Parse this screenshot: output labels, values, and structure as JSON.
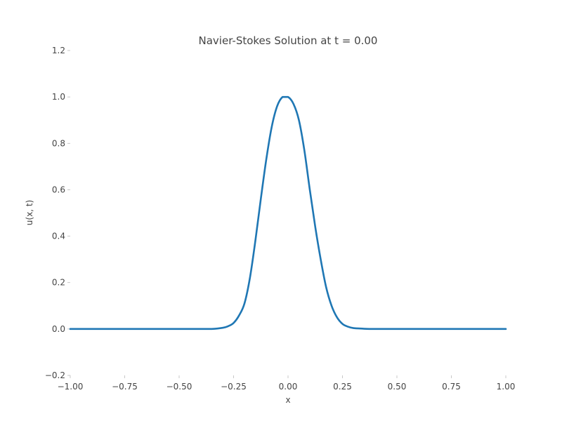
{
  "chart_data": {
    "type": "line",
    "title": "Navier-Stokes Solution at t = 0.00",
    "xlabel": "x",
    "ylabel": "u(x, t)",
    "xlim": [
      -1.0,
      1.0
    ],
    "ylim": [
      -0.2,
      1.2
    ],
    "x_ticks": [
      -1.0,
      -0.75,
      -0.5,
      -0.25,
      0.0,
      0.25,
      0.5,
      0.75,
      1.0
    ],
    "x_tick_labels": [
      "−1.00",
      "−0.75",
      "−0.50",
      "−0.25",
      "0.00",
      "0.25",
      "0.50",
      "0.75",
      "1.00"
    ],
    "y_ticks": [
      -0.2,
      0.0,
      0.2,
      0.4,
      0.6,
      0.8,
      1.0,
      1.2
    ],
    "y_tick_labels": [
      "−0.2",
      "0.0",
      "0.2",
      "0.4",
      "0.6",
      "0.8",
      "1.0",
      "1.2"
    ],
    "grid": false,
    "legend": "none",
    "series": [
      {
        "color": "#1f77b4",
        "x": [
          -1.0,
          -0.8,
          -0.6,
          -0.5,
          -0.4,
          -0.35,
          -0.3,
          -0.275,
          -0.25,
          -0.225,
          -0.2,
          -0.175,
          -0.15,
          -0.125,
          -0.1,
          -0.075,
          -0.05,
          -0.025,
          0.0,
          0.025,
          0.05,
          0.075,
          0.1,
          0.125,
          0.15,
          0.175,
          0.2,
          0.225,
          0.25,
          0.275,
          0.3,
          0.35,
          0.4,
          0.5,
          0.6,
          0.8,
          1.0
        ],
        "values": [
          0.0,
          0.0,
          0.0,
          0.0,
          0.0,
          0.0,
          0.005,
          0.012,
          0.026,
          0.058,
          0.11,
          0.22,
          0.38,
          0.56,
          0.73,
          0.87,
          0.96,
          1.0,
          1.0,
          0.97,
          0.9,
          0.77,
          0.6,
          0.44,
          0.3,
          0.18,
          0.1,
          0.05,
          0.022,
          0.01,
          0.004,
          0.001,
          0.0,
          0.0,
          0.0,
          0.0,
          0.0
        ]
      }
    ]
  }
}
